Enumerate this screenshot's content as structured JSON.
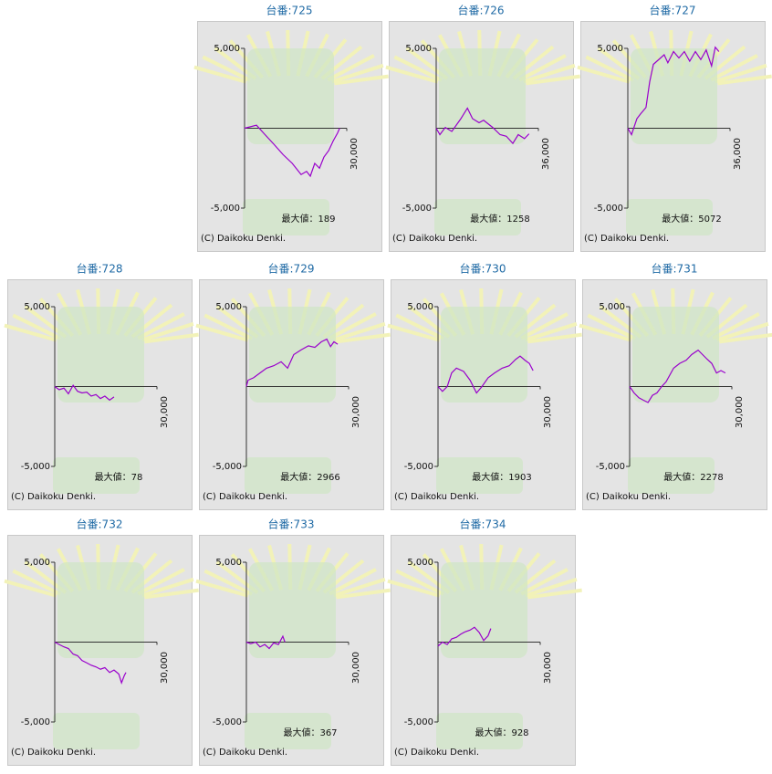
{
  "chart_data": [
    {
      "type": "line",
      "title": "台番:725",
      "xlim": [
        0,
        30000
      ],
      "xticks": [
        {
          "value": 30000,
          "label": "30,000"
        }
      ],
      "ylim": [
        -5000,
        5000
      ],
      "yticks": [
        {
          "value": 5000,
          "label": "5,000"
        },
        {
          "value": -5000,
          "label": "-5,000"
        }
      ],
      "x": [
        0,
        3500,
        6000,
        8600,
        11300,
        14000,
        16600,
        18200,
        19300,
        20600,
        22000,
        23300,
        24700,
        26000,
        27300,
        27900
      ],
      "series": [
        {
          "color": "#9900cc",
          "values": [
            0,
            189,
            -400,
            -1000,
            -1650,
            -2200,
            -2900,
            -2700,
            -3000,
            -2200,
            -2500,
            -1800,
            -1400,
            -800,
            -300,
            0
          ]
        }
      ],
      "annotation": "最大値：189",
      "copyright": "(C) Daikoku Denki."
    },
    {
      "type": "line",
      "title": "台番:726",
      "xlim": [
        0,
        36000
      ],
      "xticks": [
        {
          "value": 36000,
          "label": "36,000"
        }
      ],
      "ylim": [
        -5000,
        5000
      ],
      "yticks": [
        {
          "value": 5000,
          "label": "5,000"
        },
        {
          "value": -5000,
          "label": "-5,000"
        }
      ],
      "x": [
        0,
        1300,
        3200,
        5500,
        7100,
        8700,
        11000,
        12800,
        15100,
        16700,
        19900,
        22500,
        24700,
        27000,
        28900,
        31100,
        32700
      ],
      "series": [
        {
          "color": "#9900cc",
          "values": [
            0,
            -400,
            50,
            -200,
            200,
            600,
            1258,
            600,
            350,
            500,
            50,
            -400,
            -500,
            -950,
            -400,
            -650,
            -350
          ]
        }
      ],
      "annotation": "最大値：1258",
      "copyright": "(C) Daikoku Denki."
    },
    {
      "type": "line",
      "title": "台番:727",
      "xlim": [
        0,
        36000
      ],
      "xticks": [
        {
          "value": 36000,
          "label": "36,000"
        }
      ],
      "ylim": [
        -5000,
        5000
      ],
      "yticks": [
        {
          "value": 5000,
          "label": "5,000"
        },
        {
          "value": -5000,
          "label": "-5,000"
        }
      ],
      "x": [
        0,
        1300,
        3200,
        4500,
        6400,
        7700,
        9000,
        10900,
        12800,
        14100,
        16100,
        18000,
        19900,
        21800,
        23800,
        25700,
        27600,
        29500,
        30800,
        32100
      ],
      "series": [
        {
          "color": "#9900cc",
          "values": [
            0,
            -400,
            600,
            900,
            1300,
            2900,
            4000,
            4300,
            4600,
            4100,
            4800,
            4400,
            4800,
            4200,
            4800,
            4300,
            4900,
            3900,
            5072,
            4800
          ]
        }
      ],
      "annotation": "最大値：5072",
      "copyright": "(C) Daikoku Denki."
    },
    {
      "type": "line",
      "title": "台番:728",
      "xlim": [
        0,
        30000
      ],
      "xticks": [
        {
          "value": 30000,
          "label": "30,000"
        }
      ],
      "ylim": [
        -5000,
        5000
      ],
      "yticks": [
        {
          "value": 5000,
          "label": "5,000"
        },
        {
          "value": -5000,
          "label": "-5,000"
        }
      ],
      "x": [
        0,
        1300,
        2700,
        4000,
        5400,
        6700,
        8000,
        9400,
        10700,
        12100,
        13400,
        14700,
        16100,
        17400
      ],
      "series": [
        {
          "color": "#9900cc",
          "values": [
            0,
            -200,
            -100,
            -450,
            78,
            -300,
            -400,
            -350,
            -600,
            -500,
            -750,
            -600,
            -850,
            -650
          ]
        }
      ],
      "annotation": "最大値：78",
      "copyright": "(C) Daikoku Denki."
    },
    {
      "type": "line",
      "title": "台番:729",
      "xlim": [
        0,
        30000
      ],
      "xticks": [
        {
          "value": 30000,
          "label": "30,000"
        }
      ],
      "ylim": [
        -5000,
        5000
      ],
      "yticks": [
        {
          "value": 5000,
          "label": "5,000"
        },
        {
          "value": -5000,
          "label": "-5,000"
        }
      ],
      "x": [
        0,
        500,
        2100,
        4000,
        5900,
        8000,
        10200,
        12100,
        13900,
        16100,
        18200,
        20100,
        22000,
        23600,
        24700,
        25700,
        26800
      ],
      "series": [
        {
          "color": "#9900cc",
          "values": [
            0,
            400,
            550,
            850,
            1150,
            1300,
            1550,
            1150,
            2000,
            2300,
            2550,
            2450,
            2800,
            2966,
            2500,
            2800,
            2650
          ]
        }
      ],
      "annotation": "最大値：2966",
      "copyright": "(C) Daikoku Denki."
    },
    {
      "type": "line",
      "title": "台番:730",
      "xlim": [
        0,
        30000
      ],
      "xticks": [
        {
          "value": 30000,
          "label": "30,000"
        }
      ],
      "ylim": [
        -5000,
        5000
      ],
      "yticks": [
        {
          "value": 5000,
          "label": "5,000"
        },
        {
          "value": -5000,
          "label": "-5,000"
        }
      ],
      "x": [
        0,
        1300,
        2700,
        4000,
        5400,
        7500,
        9400,
        11300,
        12900,
        14700,
        16600,
        18800,
        20900,
        22800,
        24100,
        25500,
        26800,
        27900
      ],
      "series": [
        {
          "color": "#9900cc",
          "values": [
            0,
            -300,
            0,
            850,
            1150,
            950,
            400,
            -400,
            0,
            550,
            850,
            1150,
            1300,
            1700,
            1903,
            1650,
            1450,
            1000
          ]
        }
      ],
      "annotation": "最大値：1903",
      "copyright": "(C) Daikoku Denki."
    },
    {
      "type": "line",
      "title": "台番:731",
      "xlim": [
        0,
        30000
      ],
      "xticks": [
        {
          "value": 30000,
          "label": "30,000"
        }
      ],
      "ylim": [
        -5000,
        5000
      ],
      "yticks": [
        {
          "value": 5000,
          "label": "5,000"
        },
        {
          "value": -5000,
          "label": "-5,000"
        }
      ],
      "x": [
        0,
        1300,
        2700,
        4000,
        5400,
        6700,
        8000,
        9400,
        10700,
        12900,
        14700,
        16600,
        18200,
        20100,
        21400,
        22800,
        24100,
        25500,
        26800,
        28100
      ],
      "series": [
        {
          "color": "#9900cc",
          "values": [
            0,
            -400,
            -700,
            -850,
            -1000,
            -550,
            -400,
            0,
            300,
            1150,
            1450,
            1650,
            2000,
            2278,
            2000,
            1700,
            1450,
            850,
            1000,
            850
          ]
        }
      ],
      "annotation": "最大値：2278",
      "copyright": "(C) Daikoku Denki."
    },
    {
      "type": "line",
      "title": "台番:732",
      "xlim": [
        0,
        30000
      ],
      "xticks": [
        {
          "value": 30000,
          "label": "30,000"
        }
      ],
      "ylim": [
        -5000,
        5000
      ],
      "yticks": [
        {
          "value": 5000,
          "label": "5,000"
        },
        {
          "value": -5000,
          "label": "-5,000"
        }
      ],
      "x": [
        0,
        1300,
        2700,
        4000,
        5400,
        6700,
        8000,
        9400,
        10700,
        12100,
        13400,
        14700,
        16100,
        17400,
        18800,
        19600,
        20400,
        20900
      ],
      "series": [
        {
          "color": "#9900cc",
          "values": [
            0,
            -150,
            -300,
            -400,
            -750,
            -850,
            -1150,
            -1300,
            -1450,
            -1550,
            -1700,
            -1600,
            -1900,
            -1750,
            -2000,
            -2550,
            -2100,
            -1900
          ]
        }
      ],
      "copyright": "(C) Daikoku Denki."
    },
    {
      "type": "line",
      "title": "台番:733",
      "xlim": [
        0,
        30000
      ],
      "xticks": [
        {
          "value": 30000,
          "label": "30,000"
        }
      ],
      "ylim": [
        -5000,
        5000
      ],
      "yticks": [
        {
          "value": 5000,
          "label": "5,000"
        },
        {
          "value": -5000,
          "label": "-5,000"
        }
      ],
      "x": [
        0,
        1300,
        2700,
        4000,
        5400,
        6700,
        8000,
        9400,
        10700,
        11300
      ],
      "series": [
        {
          "color": "#9900cc",
          "values": [
            0,
            -100,
            0,
            -300,
            -150,
            -400,
            -50,
            -150,
            367,
            0
          ]
        }
      ],
      "annotation": "最大値：367",
      "copyright": "(C) Daikoku Denki."
    },
    {
      "type": "line",
      "title": "台番:734",
      "xlim": [
        0,
        30000
      ],
      "xticks": [
        {
          "value": 30000,
          "label": "30,000"
        }
      ],
      "ylim": [
        -5000,
        5000
      ],
      "yticks": [
        {
          "value": 5000,
          "label": "5,000"
        },
        {
          "value": -5000,
          "label": "-5,000"
        }
      ],
      "x": [
        0,
        1300,
        2700,
        4000,
        5400,
        6700,
        8000,
        9400,
        10700,
        12100,
        13400,
        14700,
        15500
      ],
      "series": [
        {
          "color": "#9900cc",
          "values": [
            -250,
            0,
            -150,
            200,
            300,
            500,
            650,
            750,
            928,
            600,
            100,
            400,
            850
          ]
        }
      ],
      "annotation": "最大値：928",
      "copyright": "(C) Daikoku Denki."
    }
  ]
}
